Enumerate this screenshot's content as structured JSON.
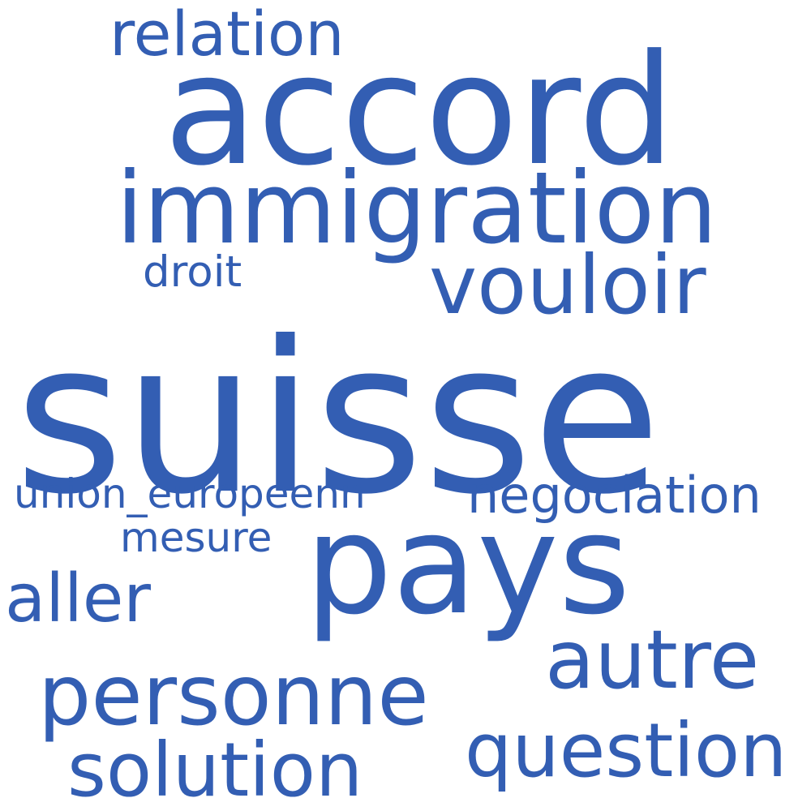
{
  "cloud": {
    "color": "#335eb3",
    "background": "#ffffff",
    "words": {
      "suisse": "suisse",
      "accord": "accord",
      "pays": "pays",
      "immigration": "immigration",
      "vouloir": "vouloir",
      "personne": "personne",
      "autre": "autre",
      "question": "question",
      "solution": "solution",
      "relation": "relation",
      "aller": "aller",
      "negociation": "negociation",
      "union_europeenn": "union_europeenn",
      "mesure": "mesure",
      "droit": "droit"
    }
  }
}
